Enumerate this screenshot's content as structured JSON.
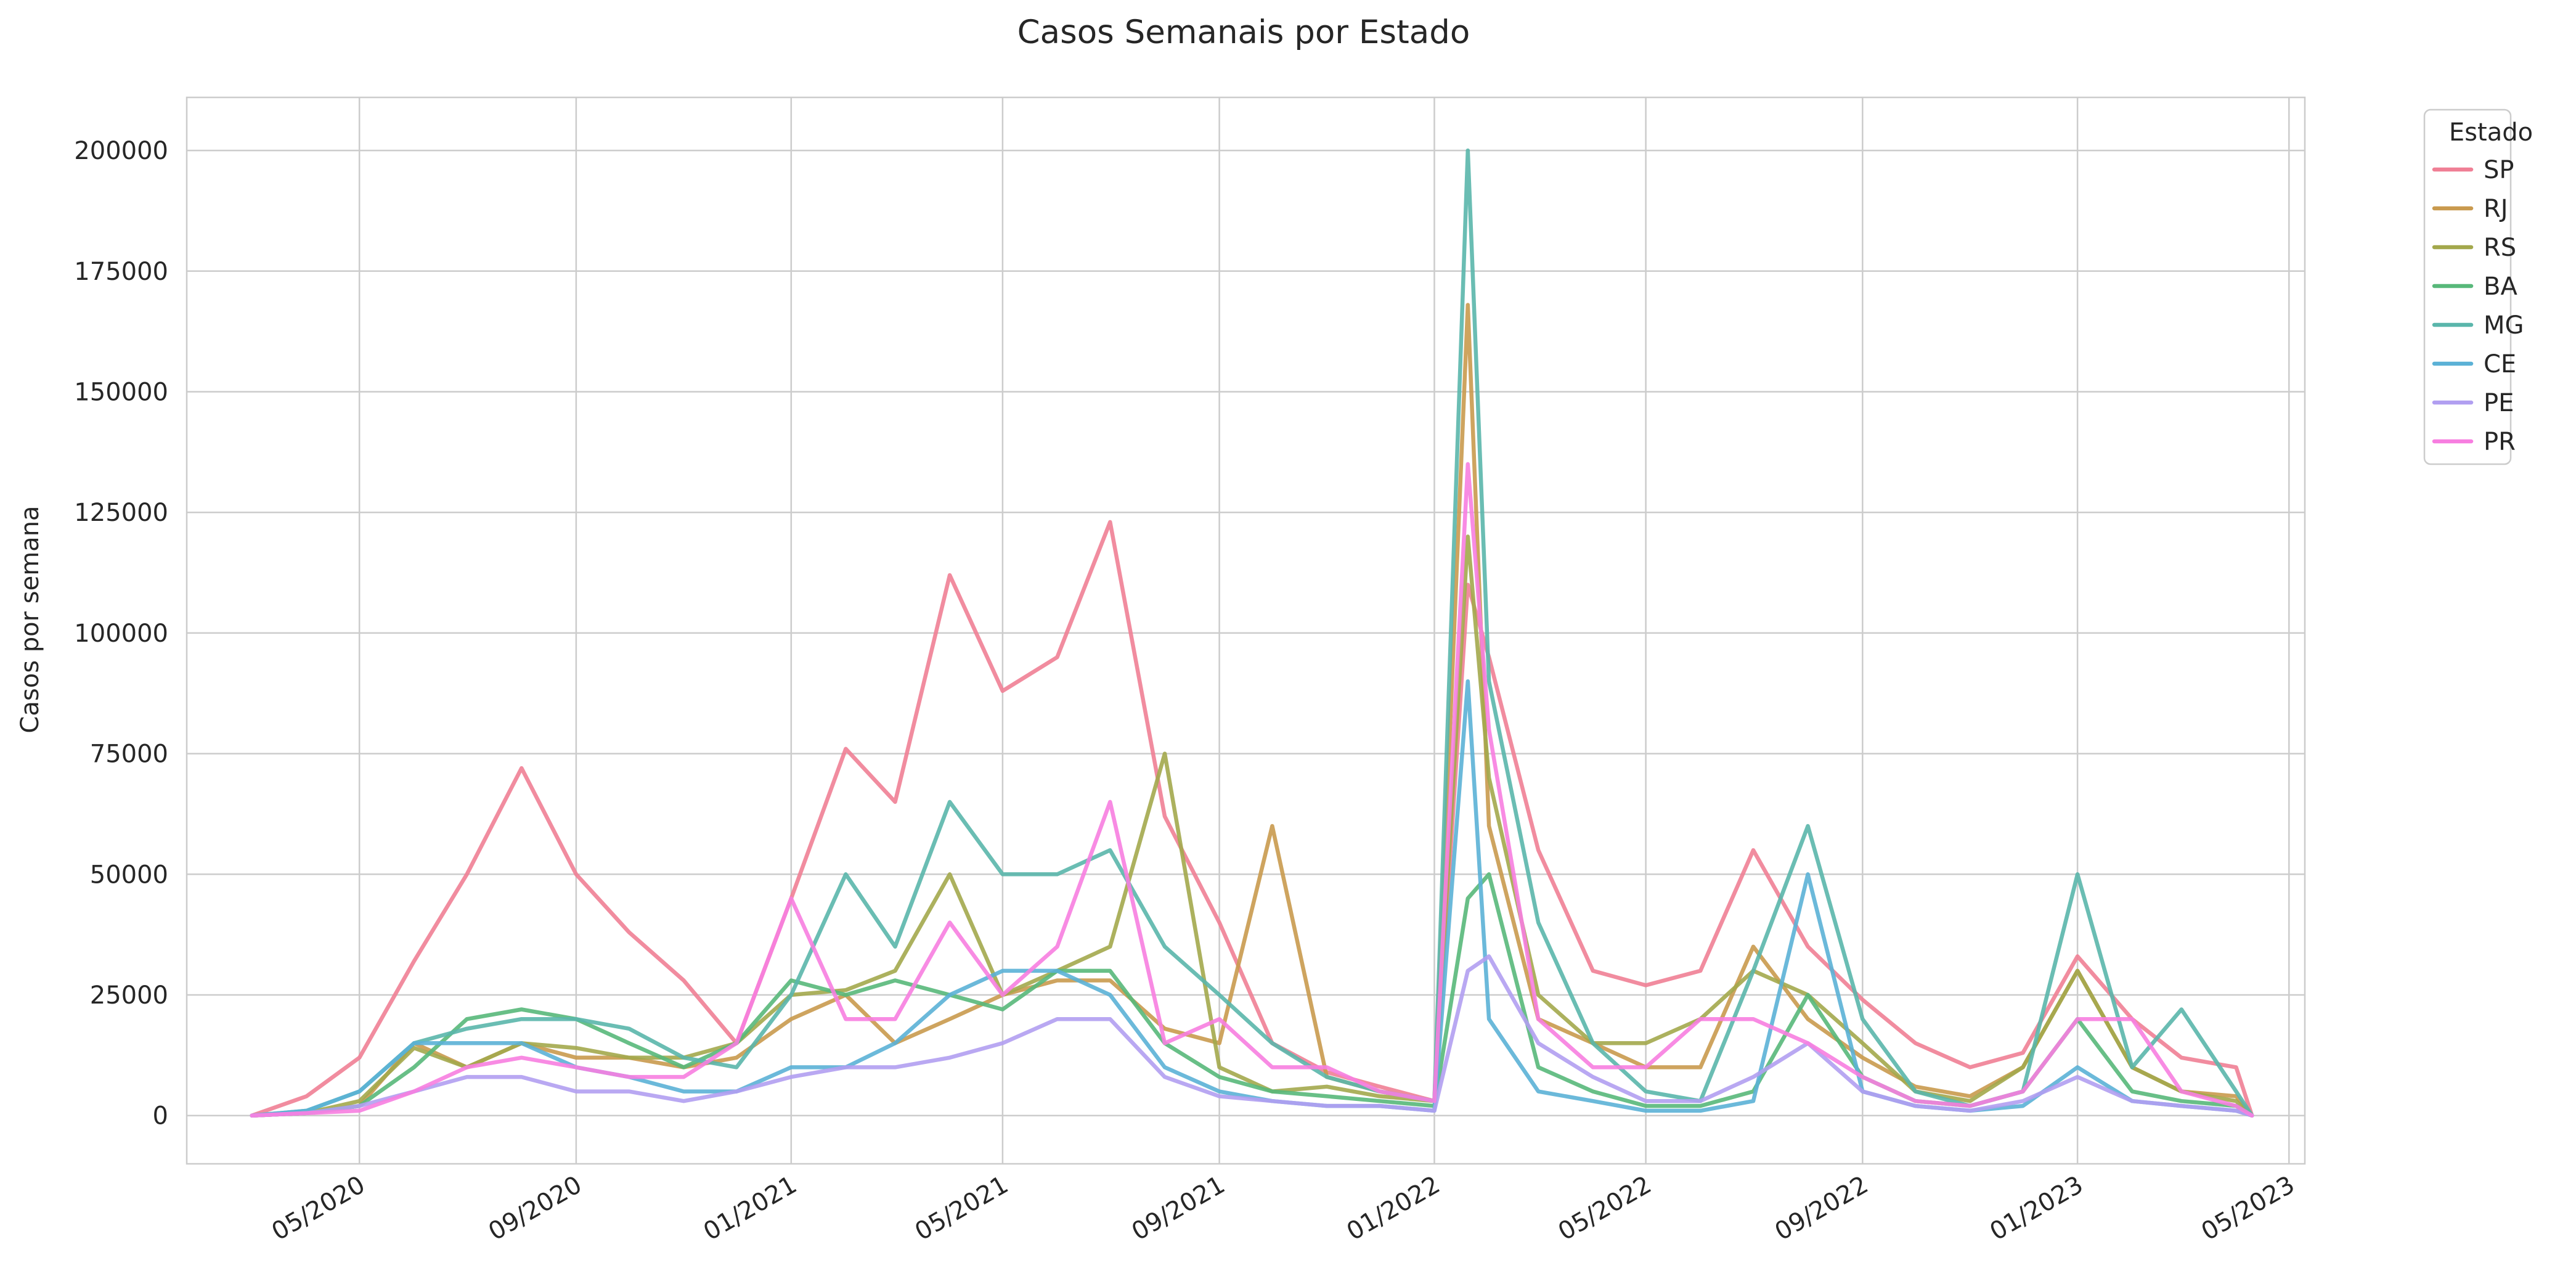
{
  "chart_data": {
    "type": "line",
    "title": "Casos Semanais por Estado",
    "xlabel": "",
    "ylabel": "Casos por semana",
    "legend_title": "Estado",
    "legend_position": "outside-top-right",
    "grid": true,
    "x_type": "date",
    "xlim": [
      "2020-01-24",
      "2023-05-10"
    ],
    "ylim": [
      -10000,
      211000
    ],
    "x_ticks": [
      "2020-05-01",
      "2020-09-01",
      "2021-01-01",
      "2021-05-01",
      "2021-09-01",
      "2022-01-01",
      "2022-05-01",
      "2022-09-01",
      "2023-01-01",
      "2023-05-01"
    ],
    "x_tick_labels": [
      "05/2020",
      "09/2020",
      "01/2021",
      "05/2021",
      "09/2021",
      "01/2022",
      "05/2022",
      "09/2022",
      "01/2023",
      "05/2023"
    ],
    "y_ticks": [
      0,
      25000,
      50000,
      75000,
      100000,
      125000,
      150000,
      175000,
      200000
    ],
    "y_tick_labels": [
      "0",
      "25000",
      "50000",
      "75000",
      "100000",
      "125000",
      "150000",
      "175000",
      "200000"
    ],
    "x": [
      "2020-03-01",
      "2020-04-01",
      "2020-05-01",
      "2020-06-01",
      "2020-07-01",
      "2020-08-01",
      "2020-09-01",
      "2020-10-01",
      "2020-11-01",
      "2020-12-01",
      "2021-01-01",
      "2021-02-01",
      "2021-03-01",
      "2021-04-01",
      "2021-05-01",
      "2021-06-01",
      "2021-07-01",
      "2021-08-01",
      "2021-09-01",
      "2021-10-01",
      "2021-11-01",
      "2021-12-01",
      "2022-01-01",
      "2022-01-20",
      "2022-02-01",
      "2022-03-01",
      "2022-04-01",
      "2022-05-01",
      "2022-06-01",
      "2022-07-01",
      "2022-08-01",
      "2022-09-01",
      "2022-10-01",
      "2022-11-01",
      "2022-12-01",
      "2023-01-01",
      "2023-02-01",
      "2023-03-01",
      "2023-04-01",
      "2023-04-10"
    ],
    "series": [
      {
        "name": "SP",
        "color": "#f07f95",
        "values": [
          0,
          4000,
          12000,
          32000,
          50000,
          72000,
          50000,
          38000,
          28000,
          15000,
          45000,
          76000,
          65000,
          112000,
          88000,
          95000,
          123000,
          62000,
          40000,
          15000,
          9000,
          6000,
          3000,
          110000,
          95000,
          55000,
          30000,
          27000,
          30000,
          55000,
          35000,
          24000,
          15000,
          10000,
          13000,
          33000,
          20000,
          12000,
          10000,
          0
        ]
      },
      {
        "name": "RJ",
        "color": "#c99a4e",
        "values": [
          0,
          500,
          2000,
          15000,
          10000,
          15000,
          12000,
          12000,
          10000,
          12000,
          20000,
          25000,
          15000,
          20000,
          25000,
          28000,
          28000,
          18000,
          15000,
          60000,
          8000,
          5000,
          3000,
          168000,
          60000,
          20000,
          15000,
          10000,
          10000,
          35000,
          20000,
          12000,
          6000,
          4000,
          10000,
          30000,
          10000,
          5000,
          4000,
          0
        ]
      },
      {
        "name": "RS",
        "color": "#a3a84c",
        "values": [
          0,
          500,
          3000,
          14000,
          10000,
          15000,
          14000,
          12000,
          12000,
          15000,
          25000,
          26000,
          30000,
          50000,
          25000,
          30000,
          35000,
          75000,
          10000,
          5000,
          6000,
          4000,
          3000,
          120000,
          70000,
          25000,
          15000,
          15000,
          20000,
          30000,
          25000,
          15000,
          5000,
          3000,
          10000,
          30000,
          10000,
          5000,
          3000,
          0
        ]
      },
      {
        "name": "BA",
        "color": "#58b87a",
        "values": [
          0,
          500,
          2000,
          10000,
          20000,
          22000,
          20000,
          15000,
          10000,
          15000,
          28000,
          25000,
          28000,
          25000,
          22000,
          30000,
          30000,
          15000,
          8000,
          5000,
          4000,
          3000,
          2000,
          45000,
          50000,
          10000,
          5000,
          2000,
          2000,
          5000,
          25000,
          8000,
          3000,
          2000,
          5000,
          20000,
          5000,
          3000,
          2000,
          0
        ]
      },
      {
        "name": "MG",
        "color": "#5ab6ab",
        "values": [
          0,
          1000,
          5000,
          15000,
          18000,
          20000,
          20000,
          18000,
          12000,
          10000,
          25000,
          50000,
          35000,
          65000,
          50000,
          50000,
          55000,
          35000,
          25000,
          15000,
          8000,
          5000,
          3000,
          200000,
          90000,
          40000,
          15000,
          5000,
          3000,
          30000,
          60000,
          20000,
          5000,
          2000,
          5000,
          50000,
          10000,
          22000,
          5000,
          0
        ]
      },
      {
        "name": "CE",
        "color": "#5bb1d6",
        "values": [
          0,
          1000,
          5000,
          15000,
          15000,
          15000,
          10000,
          8000,
          5000,
          5000,
          10000,
          10000,
          15000,
          25000,
          30000,
          30000,
          25000,
          10000,
          5000,
          3000,
          2000,
          2000,
          1000,
          90000,
          20000,
          5000,
          3000,
          1000,
          1000,
          3000,
          50000,
          5000,
          2000,
          1000,
          2000,
          10000,
          3000,
          2000,
          1000,
          0
        ]
      },
      {
        "name": "PE",
        "color": "#b19ff1",
        "values": [
          0,
          500,
          2000,
          5000,
          8000,
          8000,
          5000,
          5000,
          3000,
          5000,
          8000,
          10000,
          10000,
          12000,
          15000,
          20000,
          20000,
          8000,
          4000,
          3000,
          2000,
          2000,
          1000,
          30000,
          33000,
          15000,
          8000,
          3000,
          3000,
          8000,
          15000,
          5000,
          2000,
          1000,
          3000,
          8000,
          3000,
          2000,
          1000,
          0
        ]
      },
      {
        "name": "PR",
        "color": "#f77ee0",
        "values": [
          0,
          500,
          1000,
          5000,
          10000,
          12000,
          10000,
          8000,
          8000,
          15000,
          45000,
          20000,
          20000,
          40000,
          25000,
          35000,
          65000,
          15000,
          20000,
          10000,
          10000,
          5000,
          3000,
          135000,
          80000,
          20000,
          10000,
          10000,
          20000,
          20000,
          15000,
          8000,
          3000,
          2000,
          5000,
          20000,
          20000,
          5000,
          2000,
          0
        ]
      }
    ]
  }
}
